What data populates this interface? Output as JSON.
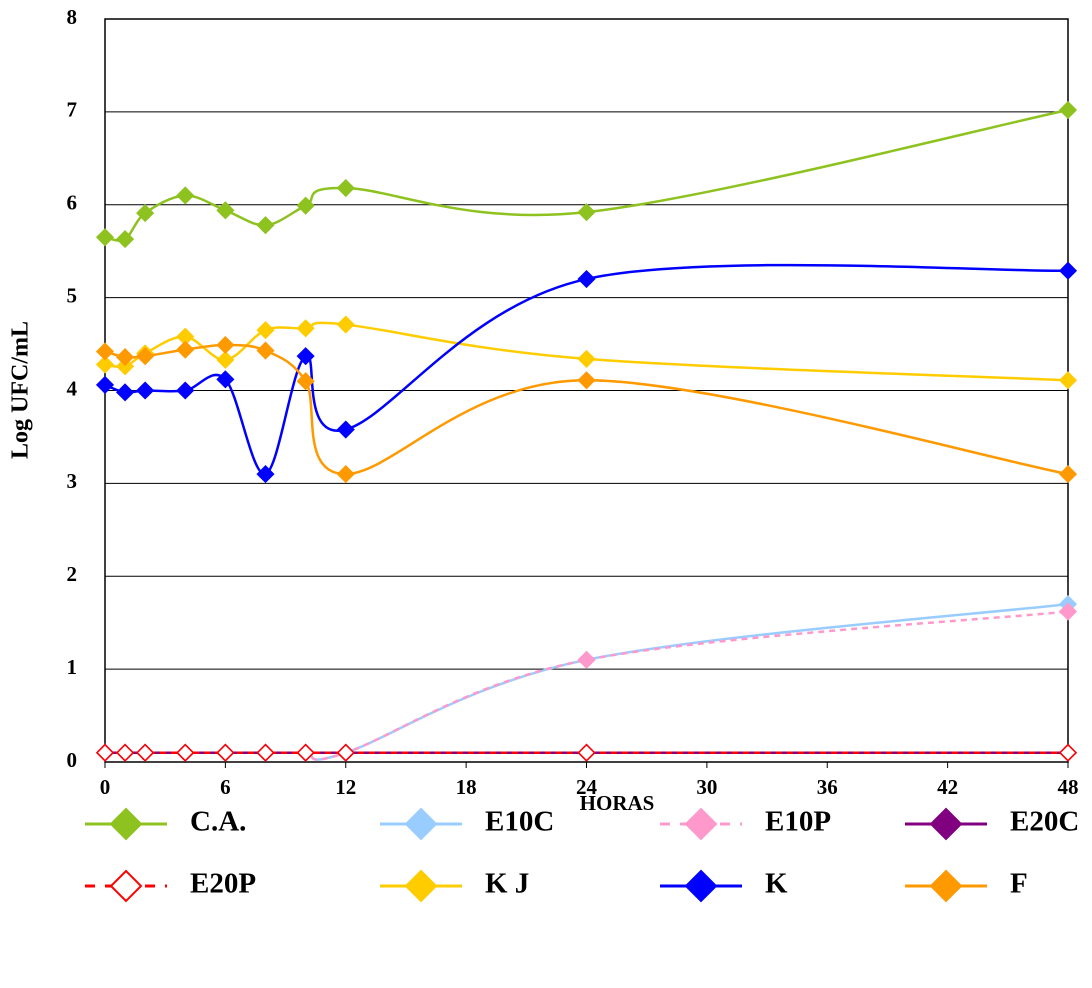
{
  "chart_data": {
    "type": "line",
    "x_label": "HORAS",
    "y_label": "Log UFC/mL",
    "x": [
      0,
      1,
      2,
      4,
      6,
      8,
      10,
      12,
      24,
      48
    ],
    "xlim": [
      0,
      48
    ],
    "xticks": [
      0,
      6,
      12,
      18,
      24,
      30,
      36,
      42,
      48
    ],
    "ylim": [
      0,
      8
    ],
    "yticks": [
      0,
      1,
      2,
      3,
      4,
      5,
      6,
      7,
      8
    ],
    "grid": true,
    "smooth": true,
    "legend": "bottom",
    "series": [
      {
        "name": "C.A.",
        "color": "#8dc21f",
        "values": [
          5.65,
          5.63,
          5.91,
          6.1,
          5.94,
          5.78,
          5.99,
          6.18,
          5.92,
          7.02
        ]
      },
      {
        "name": "E10C",
        "color": "#99ccff",
        "values": [
          0.1,
          0.1,
          0.1,
          0.1,
          0.1,
          0.1,
          0.1,
          0.1,
          1.1,
          1.7
        ]
      },
      {
        "name": "E10P",
        "color": "#ff99cc",
        "dashed": true,
        "values": [
          0.1,
          0.1,
          0.1,
          0.1,
          0.1,
          0.1,
          0.1,
          0.1,
          1.1,
          1.62
        ]
      },
      {
        "name": "E20C",
        "color": "#800080",
        "values": [
          0.1,
          0.1,
          0.1,
          0.1,
          0.1,
          0.1,
          0.1,
          0.1,
          0.1,
          0.1
        ]
      },
      {
        "name": "E20P",
        "color": "#ff0000",
        "dashed": true,
        "hollow": true,
        "values": [
          0.1,
          0.1,
          0.1,
          0.1,
          0.1,
          0.1,
          0.1,
          0.1,
          0.1,
          0.1
        ]
      },
      {
        "name": "K J",
        "color": "#ffcc00",
        "values": [
          4.28,
          4.26,
          4.4,
          4.58,
          4.33,
          4.65,
          4.67,
          4.71,
          4.34,
          4.11
        ]
      },
      {
        "name": "K",
        "color": "#0000ff",
        "values": [
          4.06,
          3.98,
          4.0,
          4.0,
          4.12,
          3.1,
          4.37,
          3.58,
          5.2,
          5.29
        ]
      },
      {
        "name": "F",
        "color": "#ff9900",
        "values": [
          4.42,
          4.36,
          4.37,
          4.44,
          4.49,
          4.43,
          4.1,
          3.1,
          4.11,
          3.1
        ]
      }
    ]
  }
}
